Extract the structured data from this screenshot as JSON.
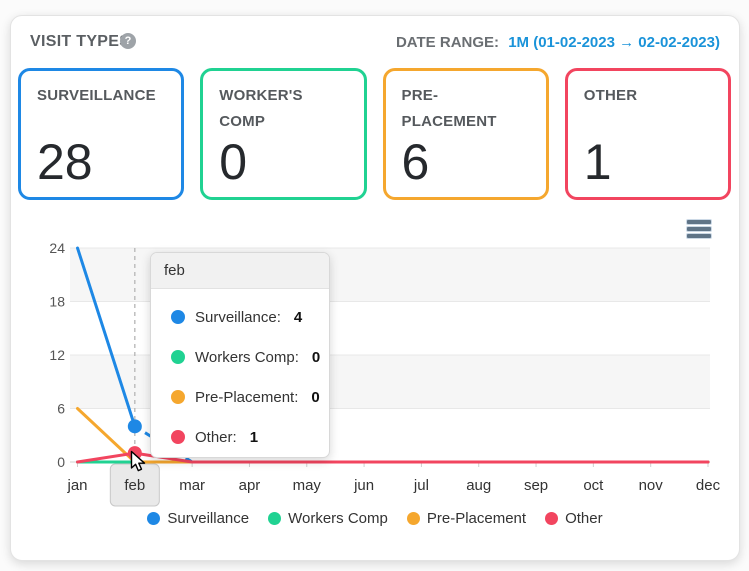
{
  "header": {
    "title": "VISIT TYPES",
    "help_icon": "?",
    "date_range_label": "DATE RANGE:",
    "date_range_value": "1M (01-02-2023 → 02-02-2023)"
  },
  "cards": [
    {
      "label": "SURVEILLANCE",
      "value": "28",
      "color": "#1e88e5"
    },
    {
      "label": "WORKER'S COMP",
      "value": "0",
      "color": "#20d292"
    },
    {
      "label": "PRE-PLACEMENT",
      "value": "6",
      "color": "#f5a72e"
    },
    {
      "label": "OTHER",
      "value": "1",
      "color": "#f2455f"
    }
  ],
  "chart_data": {
    "type": "line",
    "categories": [
      "jan",
      "feb",
      "mar",
      "apr",
      "may",
      "jun",
      "jul",
      "aug",
      "sep",
      "oct",
      "nov",
      "dec"
    ],
    "series": [
      {
        "name": "Surveillance",
        "color": "#1e88e5",
        "values": [
          24,
          4,
          0,
          0,
          0,
          0,
          0,
          0,
          0,
          0,
          0,
          0
        ]
      },
      {
        "name": "Workers Comp",
        "color": "#20d292",
        "values": [
          0,
          0,
          0,
          0,
          0,
          0,
          0,
          0,
          0,
          0,
          0,
          0
        ]
      },
      {
        "name": "Pre-Placement",
        "color": "#f5a72e",
        "values": [
          6,
          0,
          0,
          0,
          0,
          0,
          0,
          0,
          0,
          0,
          0,
          0
        ]
      },
      {
        "name": "Other",
        "color": "#f2455f",
        "values": [
          0,
          1,
          0,
          0,
          0,
          0,
          0,
          0,
          0,
          0,
          0,
          0
        ]
      }
    ],
    "ylim": [
      0,
      24
    ],
    "yticks": [
      0,
      6,
      12,
      18,
      24
    ],
    "xlabel": "",
    "ylabel": "",
    "grid": "horizontal gridlines with alternating gray bands",
    "legend_position": "bottom",
    "hover": {
      "category": "feb",
      "index": 1,
      "markers": [
        {
          "series": "Surveillance",
          "value": 4
        },
        {
          "series": "Other",
          "value": 1
        }
      ],
      "dashed_segment": {
        "series": "Surveillance",
        "from_index": 1,
        "to_index": 2
      }
    }
  },
  "tooltip": {
    "title": "feb",
    "rows": [
      {
        "label": "Surveillance:",
        "value": "4",
        "color": "#1e88e5"
      },
      {
        "label": "Workers Comp:",
        "value": "0",
        "color": "#20d292"
      },
      {
        "label": "Pre-Placement:",
        "value": "0",
        "color": "#f5a72e"
      },
      {
        "label": "Other:",
        "value": "1",
        "color": "#f2455f"
      }
    ]
  },
  "icons": {
    "help": "?",
    "chart_menu": "hamburger"
  }
}
